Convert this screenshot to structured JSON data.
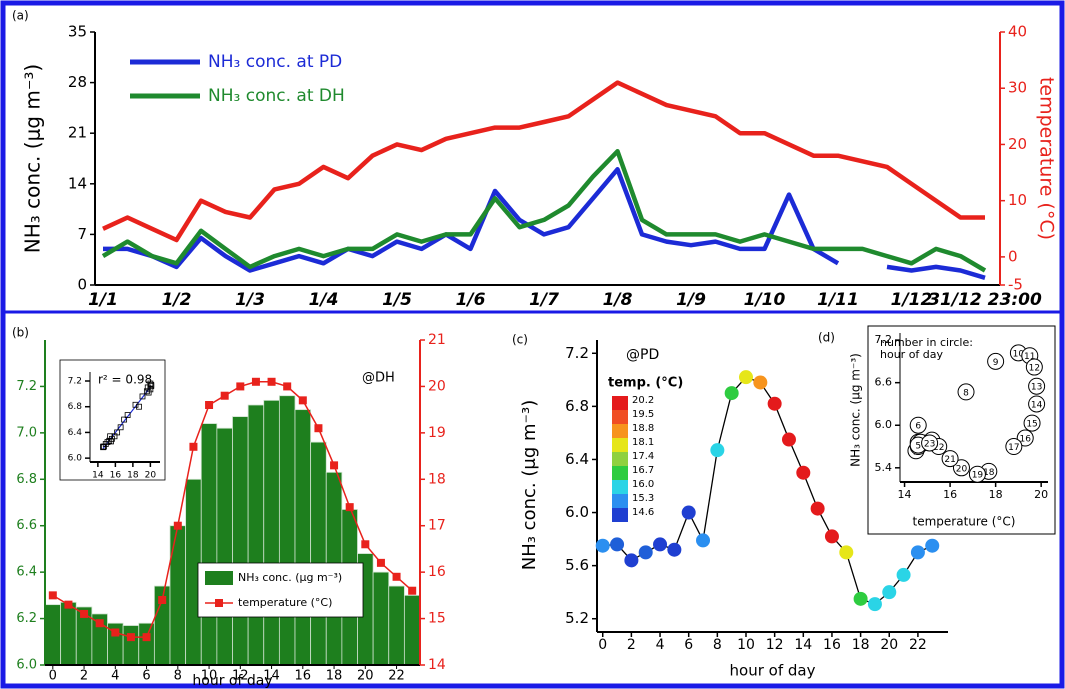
{
  "chart_data": [
    {
      "type": "line",
      "label": "(a)",
      "categories": [
        "1/1",
        null,
        null,
        "1/2",
        null,
        null,
        "1/3",
        null,
        null,
        "1/4",
        null,
        null,
        "1/5",
        null,
        null,
        "1/6",
        null,
        null,
        "1/7",
        null,
        null,
        "1/8",
        null,
        null,
        "1/9",
        null,
        null,
        "1/10",
        null,
        null,
        "1/11",
        null,
        null,
        "1/12",
        null,
        null,
        "31/12 23:00"
      ],
      "series": [
        {
          "name": "NH₃ conc. at PD",
          "color": "#1c2bd6",
          "values": [
            5,
            5,
            4,
            2.5,
            6.5,
            4,
            2,
            3,
            4,
            3,
            5,
            4,
            6,
            5,
            7,
            5,
            13,
            9,
            7,
            8,
            12,
            16,
            7,
            6,
            5.5,
            6,
            5,
            5,
            12.5,
            5,
            3,
            null,
            2.5,
            2,
            2.5,
            2,
            1
          ]
        },
        {
          "name": "NH₃ conc. at DH",
          "color": "#1f8a2e",
          "values": [
            4,
            6,
            4,
            3,
            7.5,
            5,
            2.5,
            4,
            5,
            4,
            5,
            5,
            7,
            6,
            7,
            7,
            12,
            8,
            9,
            11,
            15,
            18.5,
            9,
            7,
            7,
            7,
            6,
            7,
            6,
            5,
            5,
            5,
            4,
            3,
            5,
            4,
            2
          ]
        },
        {
          "color": "#e8221c",
          "axis": "y2",
          "values": [
            5,
            7,
            5,
            3,
            10,
            8,
            7,
            12,
            13,
            16,
            14,
            18,
            20,
            19,
            21,
            22,
            23,
            23,
            24,
            25,
            28,
            31,
            29,
            27,
            26,
            25,
            22,
            22,
            20,
            18,
            18,
            17,
            16,
            13,
            10,
            7,
            7
          ]
        }
      ],
      "y_label": "NH₃ conc. (μg m⁻³)",
      "y2_label": "temperature (°C)",
      "ylim": [
        0,
        35
      ],
      "yticks": [
        0,
        7,
        14,
        21,
        28,
        35
      ],
      "y2lim": [
        -5,
        40
      ],
      "y2ticks": [
        -5,
        0,
        10,
        20,
        30,
        40
      ]
    },
    {
      "type": "bar",
      "label": "(b)",
      "annotation": "@DH",
      "categories": [
        "0",
        null,
        "2",
        null,
        "4",
        null,
        "6",
        null,
        "8",
        null,
        "10",
        null,
        "12",
        null,
        "14",
        null,
        "16",
        null,
        "18",
        null,
        "20",
        null,
        "22",
        null
      ],
      "series": [
        {
          "name": "NH₃ conc. (μg m⁻³)",
          "color": "#1e7f1e",
          "values": [
            6.26,
            6.27,
            6.25,
            6.22,
            6.18,
            6.17,
            6.18,
            6.34,
            6.6,
            6.8,
            7.04,
            7.02,
            7.07,
            7.12,
            7.14,
            7.16,
            7.1,
            6.96,
            6.83,
            6.67,
            6.48,
            6.4,
            6.34,
            6.3
          ]
        },
        {
          "name": "temperature (°C)",
          "color": "#e8221c",
          "axis": "y2",
          "values": [
            15.5,
            15.3,
            15.1,
            14.9,
            14.7,
            14.6,
            14.6,
            15.4,
            17,
            18.7,
            19.6,
            19.8,
            20,
            20.1,
            20.1,
            20,
            19.7,
            19.1,
            18.3,
            17.4,
            16.6,
            16.2,
            15.9,
            15.6
          ]
        }
      ],
      "x_label": "hour of day",
      "ylim": [
        6.0,
        7.4
      ],
      "yticks": [
        {
          "value": 6,
          "label": "6.0"
        },
        6.2,
        6.4,
        6.6,
        6.8,
        {
          "value": 7,
          "label": "7.0"
        },
        7.2
      ],
      "y2lim": [
        14,
        21
      ],
      "y2ticks": [
        14,
        15,
        16,
        17,
        18,
        19,
        20,
        21
      ],
      "inset": {
        "annotation": "r² = 0.98",
        "xlim": [
          13.1,
          21.1
        ],
        "xticks": [
          14,
          16,
          18,
          20
        ],
        "ylim": [
          5.94,
          7.34
        ],
        "yticks": [
          {
            "value": 6,
            "label": "6.0"
          },
          6.4,
          6.8,
          7.2
        ]
      }
    },
    {
      "type": "line",
      "label": "(c)",
      "annotation": "@PD",
      "x": [
        0,
        1,
        2,
        3,
        4,
        5,
        6,
        7,
        8,
        9,
        10,
        11,
        12,
        13,
        14,
        15,
        16,
        17,
        18,
        19,
        20,
        21,
        22,
        23
      ],
      "values": [
        5.75,
        5.76,
        5.64,
        5.7,
        5.76,
        5.72,
        6.0,
        5.79,
        6.47,
        6.9,
        7.02,
        6.98,
        6.82,
        6.55,
        6.3,
        6.03,
        5.82,
        5.7,
        5.35,
        5.31,
        5.4,
        5.53,
        5.7,
        5.75
      ],
      "colors": [
        "#2b8ff0",
        "#1f5fd8",
        "#1f3fd1",
        "#1f5fd8",
        "#1f3fd1",
        "#1f3fd1",
        "#1f3fd1",
        "#2b8ff0",
        "#2ad4e6",
        "#2ecc40",
        "#e6e619",
        "#f7941d",
        "#e41a1c",
        "#e41a1c",
        "#e41a1c",
        "#e41a1c",
        "#e41a1c",
        "#e6e619",
        "#2ecc40",
        "#2ad4e6",
        "#2ad4e6",
        "#2ad4e6",
        "#2b8ff0",
        "#2b8ff0"
      ],
      "x_label": "hour of day",
      "y_label": "NH₃ conc. (μg m⁻³)",
      "xlim": [
        -0.4,
        24.1
      ],
      "xticks": [
        0,
        2,
        4,
        6,
        8,
        10,
        12,
        14,
        16,
        18,
        20,
        22
      ],
      "ylim": [
        5.1,
        7.3
      ],
      "yticks": [
        5.2,
        5.6,
        {
          "value": 6,
          "label": "6.0"
        },
        6.4,
        6.8,
        7.2
      ],
      "colorbar": {
        "title": "temp. (°C)",
        "labels": [
          20.2,
          19.5,
          18.8,
          18.1,
          17.4,
          16.7,
          {
            "value": 16,
            "label": "16.0"
          },
          15.3,
          14.6
        ],
        "colors": [
          "#e41a1c",
          "#f04e23",
          "#f7941d",
          "#e6e619",
          "#8fd13f",
          "#2ecc40",
          "#2ad4e6",
          "#2b8ff0",
          "#1f3fd1"
        ]
      }
    },
    {
      "type": "scatter",
      "label": "(d)",
      "annotation": [
        "number in circle:",
        "hour of day"
      ],
      "x": [
        14.8,
        14.6,
        14.5,
        14.6,
        14.7,
        14.6,
        14.6,
        15.2,
        16.7,
        18,
        19,
        19.5,
        19.7,
        19.8,
        19.8,
        19.6,
        19.3,
        18.8,
        17.7,
        17.2,
        16.5,
        16,
        15.5,
        15.1
      ],
      "x_label": "temperature (°C)",
      "y_label": "NH₃ conc. (μg m⁻³)",
      "xlim": [
        13.8,
        20.3
      ],
      "xticks": [
        14,
        16,
        18,
        20
      ],
      "ylim": [
        5.2,
        7.3
      ],
      "yticks": [
        5.4,
        {
          "value": 6,
          "label": "6.0"
        },
        6.6,
        7.2
      ]
    }
  ]
}
